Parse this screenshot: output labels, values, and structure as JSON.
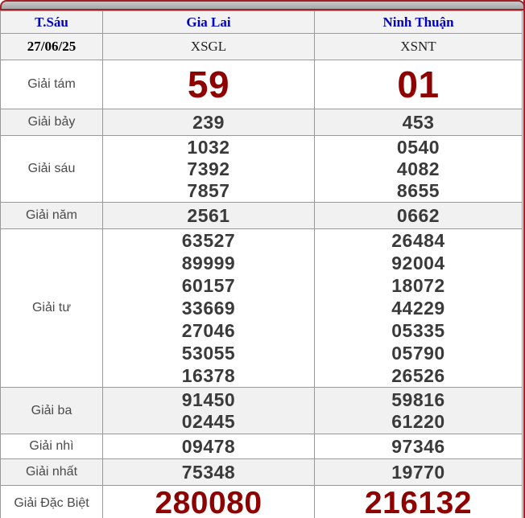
{
  "colors": {
    "accent_red": "#9e2227",
    "number_red": "#8f0000",
    "header_blue": "#0000bf",
    "border_gray": "#999999",
    "row_shade": "#f1f1f1"
  },
  "header": {
    "day": "T.Sáu",
    "stations": [
      "Gia Lai",
      "Ninh Thuận"
    ]
  },
  "subheader": {
    "date": "27/06/25",
    "codes": [
      "XSGL",
      "XSNT"
    ]
  },
  "rows": [
    {
      "label": "Giải tám",
      "gia_lai": [
        "59"
      ],
      "ninh_thuan": [
        "01"
      ]
    },
    {
      "label": "Giải bảy",
      "gia_lai": [
        "239"
      ],
      "ninh_thuan": [
        "453"
      ]
    },
    {
      "label": "Giải sáu",
      "gia_lai": [
        "1032",
        "7392",
        "7857"
      ],
      "ninh_thuan": [
        "0540",
        "4082",
        "8655"
      ]
    },
    {
      "label": "Giải năm",
      "gia_lai": [
        "2561"
      ],
      "ninh_thuan": [
        "0662"
      ]
    },
    {
      "label": "Giải tư",
      "gia_lai": [
        "63527",
        "89999",
        "60157",
        "33669",
        "27046",
        "53055",
        "16378"
      ],
      "ninh_thuan": [
        "26484",
        "92004",
        "18072",
        "44229",
        "05335",
        "05790",
        "26526"
      ]
    },
    {
      "label": "Giải ba",
      "gia_lai": [
        "91450",
        "02445"
      ],
      "ninh_thuan": [
        "59816",
        "61220"
      ]
    },
    {
      "label": "Giải nhì",
      "gia_lai": [
        "09478"
      ],
      "ninh_thuan": [
        "97346"
      ]
    },
    {
      "label": "Giải nhất",
      "gia_lai": [
        "75348"
      ],
      "ninh_thuan": [
        "19770"
      ]
    },
    {
      "label": "Giải Đặc Biệt",
      "gia_lai": [
        "280080"
      ],
      "ninh_thuan": [
        "216132"
      ]
    }
  ]
}
